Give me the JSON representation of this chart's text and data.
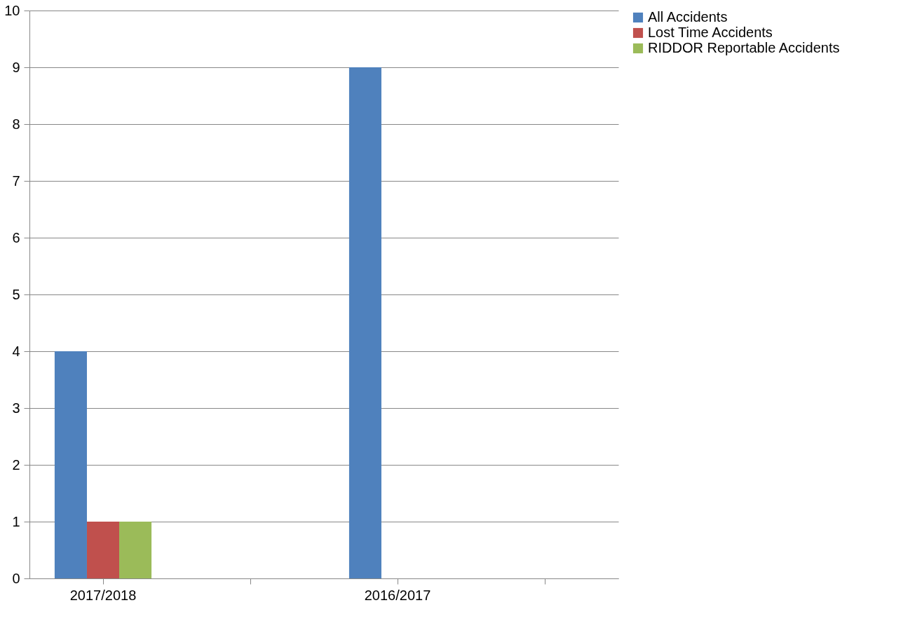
{
  "chart_data": {
    "type": "bar",
    "categories": [
      "2017/2018",
      null,
      "2016/2017",
      null
    ],
    "series": [
      {
        "name": "All Accidents",
        "color": "#4f81bd",
        "values": [
          4,
          null,
          9,
          null
        ]
      },
      {
        "name": "Lost Time Accidents",
        "color": "#c0504d",
        "values": [
          1,
          null,
          0,
          null
        ]
      },
      {
        "name": "RIDDOR  Reportable Accidents",
        "color": "#9bbb59",
        "values": [
          1,
          null,
          0,
          null
        ]
      }
    ],
    "ylim": [
      0,
      10
    ],
    "yticks": [
      0,
      1,
      2,
      3,
      4,
      5,
      6,
      7,
      8,
      9,
      10
    ],
    "grid": "y",
    "legend": "right"
  }
}
